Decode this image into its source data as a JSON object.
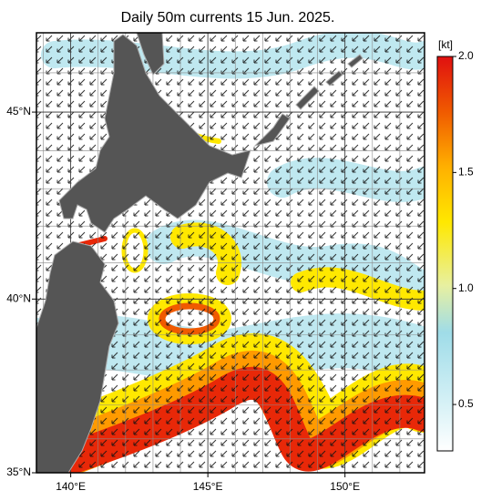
{
  "title": "Daily 50m currents 15 Jun. 2025.",
  "map": {
    "xlim": [
      138.75,
      152.9
    ],
    "ylim": [
      35,
      47
    ],
    "xticks": [
      {
        "value": 140,
        "label": "140°E"
      },
      {
        "value": 145,
        "label": "145°E"
      },
      {
        "value": 150,
        "label": "150°E"
      }
    ],
    "yticks": [
      {
        "value": 35,
        "label": "35°N"
      },
      {
        "value": 40,
        "label": "40°N"
      },
      {
        "value": 45,
        "label": "45°N"
      }
    ],
    "grid_step": 1,
    "projection": "mercator"
  },
  "colorbar": {
    "unit": "[kt]",
    "clim": [
      0.3,
      2
    ],
    "ticks": [
      {
        "value": 2,
        "label": "2.0"
      },
      1.5,
      {
        "value": 1,
        "label": "1.0"
      },
      0.5
    ]
  }
}
